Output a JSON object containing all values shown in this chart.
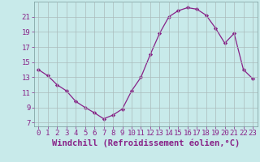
{
  "hours": [
    0,
    1,
    2,
    3,
    4,
    5,
    6,
    7,
    8,
    9,
    10,
    11,
    12,
    13,
    14,
    15,
    16,
    17,
    18,
    19,
    20,
    21,
    22,
    23
  ],
  "values": [
    14.0,
    13.2,
    12.0,
    11.2,
    9.8,
    9.0,
    8.3,
    7.5,
    8.0,
    8.8,
    11.2,
    13.0,
    16.0,
    18.8,
    21.0,
    21.8,
    22.2,
    22.0,
    21.2,
    19.5,
    17.5,
    18.8,
    14.0,
    12.8
  ],
  "line_color": "#882288",
  "marker": "D",
  "marker_size": 2.2,
  "bg_color": "#c8eaea",
  "grid_color": "#aabbbb",
  "xlabel": "Windchill (Refroidissement éolien,°C)",
  "xlabel_color": "#882288",
  "xlabel_fontsize": 7.5,
  "tick_color": "#882288",
  "tick_fontsize": 6.5,
  "ylim": [
    6.5,
    23.0
  ],
  "xlim": [
    -0.5,
    23.5
  ],
  "yticks": [
    7,
    9,
    11,
    13,
    15,
    17,
    19,
    21
  ],
  "xticks": [
    0,
    1,
    2,
    3,
    4,
    5,
    6,
    7,
    8,
    9,
    10,
    11,
    12,
    13,
    14,
    15,
    16,
    17,
    18,
    19,
    20,
    21,
    22,
    23
  ]
}
